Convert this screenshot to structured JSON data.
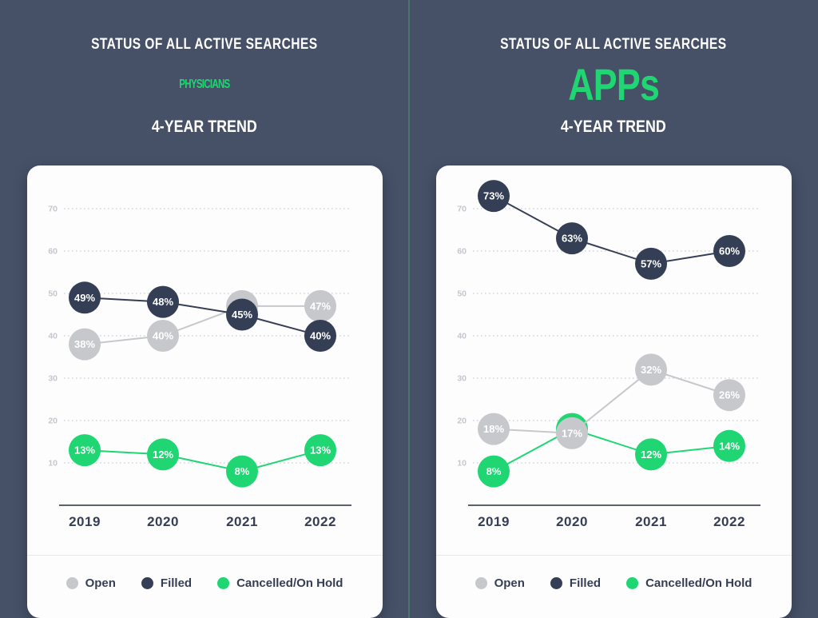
{
  "page": {
    "background_color": "#465067",
    "divider_color": "#4d7b72",
    "accent_green": "#1fd673",
    "dark_navy": "#343e54",
    "light_gray": "#c6c8cc"
  },
  "panels": [
    {
      "name": "physicians",
      "header": {
        "eyebrow": "STATUS OF ALL ACTIVE SEARCHES",
        "title": "PHYSICIANS",
        "subtitle": "4-YEAR TREND"
      },
      "legend": [
        {
          "label": "Open",
          "color": "#c6c8cc"
        },
        {
          "label": "Filled",
          "color": "#343e54"
        },
        {
          "label": "Cancelled/On Hold",
          "color": "#1fd673"
        }
      ]
    },
    {
      "name": "apps",
      "header": {
        "eyebrow": "STATUS OF ALL ACTIVE SEARCHES",
        "title": "APPs",
        "subtitle": "4-YEAR TREND"
      },
      "legend": [
        {
          "label": "Open",
          "color": "#c6c8cc"
        },
        {
          "label": "Filled",
          "color": "#343e54"
        },
        {
          "label": "Cancelled/On Hold",
          "color": "#1fd673"
        }
      ]
    }
  ],
  "chart_data": [
    {
      "type": "line",
      "title": "Status of All Active Searches — Physicians, 4-Year Trend",
      "categories": [
        "2019",
        "2020",
        "2021",
        "2022"
      ],
      "y_ticks": [
        10,
        20,
        30,
        40,
        50,
        60,
        70
      ],
      "ylim": [
        0,
        78
      ],
      "grid": "dotted-horizontal",
      "legend_position": "bottom",
      "series": [
        {
          "name": "Cancelled/On Hold",
          "color": "#1fd673",
          "values": [
            13,
            12,
            8,
            13
          ],
          "labels": [
            "13%",
            "12%",
            "8%",
            "13%"
          ]
        },
        {
          "name": "Open",
          "color": "#c6c8cc",
          "values": [
            38,
            40,
            47,
            47
          ],
          "labels": [
            "38%",
            "40%",
            "47%",
            "47%"
          ]
        },
        {
          "name": "Filled",
          "color": "#343e54",
          "values": [
            49,
            48,
            45,
            40
          ],
          "labels": [
            "49%",
            "48%",
            "45%",
            "40%"
          ]
        }
      ]
    },
    {
      "type": "line",
      "title": "Status of All Active Searches — APPs, 4-Year Trend",
      "categories": [
        "2019",
        "2020",
        "2021",
        "2022"
      ],
      "y_ticks": [
        10,
        20,
        30,
        40,
        50,
        60,
        70
      ],
      "ylim": [
        0,
        78
      ],
      "grid": "dotted-horizontal",
      "legend_position": "bottom",
      "series": [
        {
          "name": "Cancelled/On Hold",
          "color": "#1fd673",
          "values": [
            8,
            18,
            12,
            14
          ],
          "labels": [
            "8%",
            "",
            "12%",
            "14%"
          ],
          "note": "2020 marker mostly hidden behind the Open 17% marker"
        },
        {
          "name": "Open",
          "color": "#c6c8cc",
          "values": [
            18,
            17,
            32,
            26
          ],
          "labels": [
            "18%",
            "17%",
            "32%",
            "26%"
          ]
        },
        {
          "name": "Filled",
          "color": "#343e54",
          "values": [
            73,
            63,
            57,
            60
          ],
          "labels": [
            "73%",
            "63%",
            "57%",
            "60%"
          ]
        }
      ]
    }
  ]
}
